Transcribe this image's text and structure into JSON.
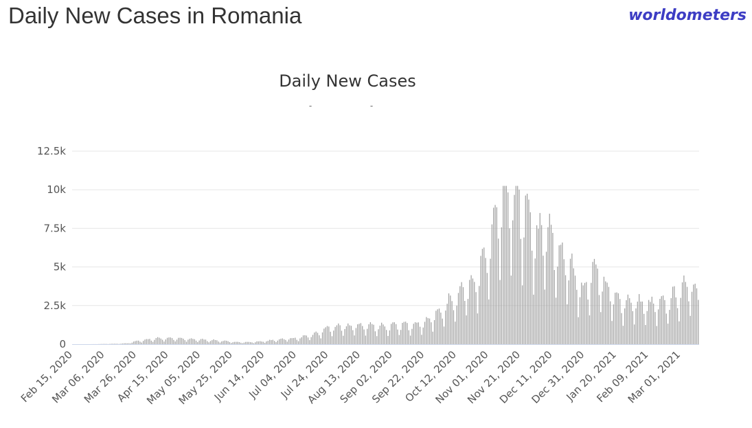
{
  "page": {
    "title": "Daily New Cases in Romania",
    "brand": "worldometers"
  },
  "chart_data": {
    "type": "bar",
    "title": "Daily New Cases",
    "subtitle_marks": [
      "-",
      "-"
    ],
    "xlabel": "",
    "ylabel": "",
    "ylim": [
      0,
      12500
    ],
    "y_ticks": [
      {
        "value": 0,
        "label": "0"
      },
      {
        "value": 2500,
        "label": "2.5k"
      },
      {
        "value": 5000,
        "label": "5k"
      },
      {
        "value": 7500,
        "label": "7.5k"
      },
      {
        "value": 10000,
        "label": "10k"
      },
      {
        "value": 12500,
        "label": "12.5k"
      }
    ],
    "x_tick_labels": [
      "Feb 15, 2020",
      "Mar 06, 2020",
      "Mar 26, 2020",
      "Apr 15, 2020",
      "May 05, 2020",
      "May 25, 2020",
      "Jun 14, 2020",
      "Jul 04, 2020",
      "Jul 24, 2020",
      "Aug 13, 2020",
      "Sep 02, 2020",
      "Sep 22, 2020",
      "Oct 12, 2020",
      "Nov 01, 2020",
      "Nov 21, 2020",
      "Dec 11, 2020",
      "Dec 31, 2020",
      "Jan 20, 2021",
      "Feb 09, 2021",
      "Mar 01, 2021"
    ],
    "x_tick_every_days": 20,
    "grid": true,
    "colors": {
      "bar": "#a3a3a3",
      "grid": "#e6e6e6",
      "axis_label": "#555555",
      "baseline": "#ccd6eb"
    },
    "anchors": [
      [
        "Feb 15, 2020",
        0
      ],
      [
        "Feb 26, 2020",
        0
      ],
      [
        "Mar 14, 2020",
        30
      ],
      [
        "Mar 20, 2020",
        60
      ],
      [
        "Mar 26, 2020",
        200
      ],
      [
        "Apr 01, 2020",
        300
      ],
      [
        "Apr 08, 2020",
        380
      ],
      [
        "Apr 15, 2020",
        400
      ],
      [
        "Apr 25, 2020",
        350
      ],
      [
        "May 05, 2020",
        300
      ],
      [
        "May 15, 2020",
        250
      ],
      [
        "May 25, 2020",
        150
      ],
      [
        "Jun 04, 2020",
        130
      ],
      [
        "Jun 14, 2020",
        200
      ],
      [
        "Jun 24, 2020",
        330
      ],
      [
        "Jul 04, 2020",
        400
      ],
      [
        "Jul 14, 2020",
        600
      ],
      [
        "Jul 24, 2020",
        1100
      ],
      [
        "Aug 03, 2020",
        1150
      ],
      [
        "Aug 13, 2020",
        1250
      ],
      [
        "Aug 23, 2020",
        1200
      ],
      [
        "Sep 02, 2020",
        1200
      ],
      [
        "Sep 12, 2020",
        1300
      ],
      [
        "Sep 22, 2020",
        1450
      ],
      [
        "Oct 02, 2020",
        2200
      ],
      [
        "Oct 12, 2020",
        3300
      ],
      [
        "Oct 22, 2020",
        4200
      ],
      [
        "Nov 01, 2020",
        6000
      ],
      [
        "Nov 06, 2020",
        9000
      ],
      [
        "Nov 11, 2020",
        9600
      ],
      [
        "Nov 16, 2020",
        9300
      ],
      [
        "Nov 21, 2020",
        9300
      ],
      [
        "Nov 26, 2020",
        8200
      ],
      [
        "Dec 01, 2020",
        7000
      ],
      [
        "Dec 06, 2020",
        7600
      ],
      [
        "Dec 11, 2020",
        6800
      ],
      [
        "Dec 21, 2020",
        5300
      ],
      [
        "Dec 31, 2020",
        3500
      ],
      [
        "Jan 06, 2021",
        5200
      ],
      [
        "Jan 12, 2021",
        4000
      ],
      [
        "Jan 20, 2021",
        2900
      ],
      [
        "Jan 30, 2021",
        2800
      ],
      [
        "Feb 09, 2021",
        2600
      ],
      [
        "Feb 19, 2021",
        2700
      ],
      [
        "Mar 01, 2021",
        3500
      ],
      [
        "Mar 08, 2021",
        4200
      ],
      [
        "Mar 12, 2021",
        3000
      ]
    ]
  }
}
